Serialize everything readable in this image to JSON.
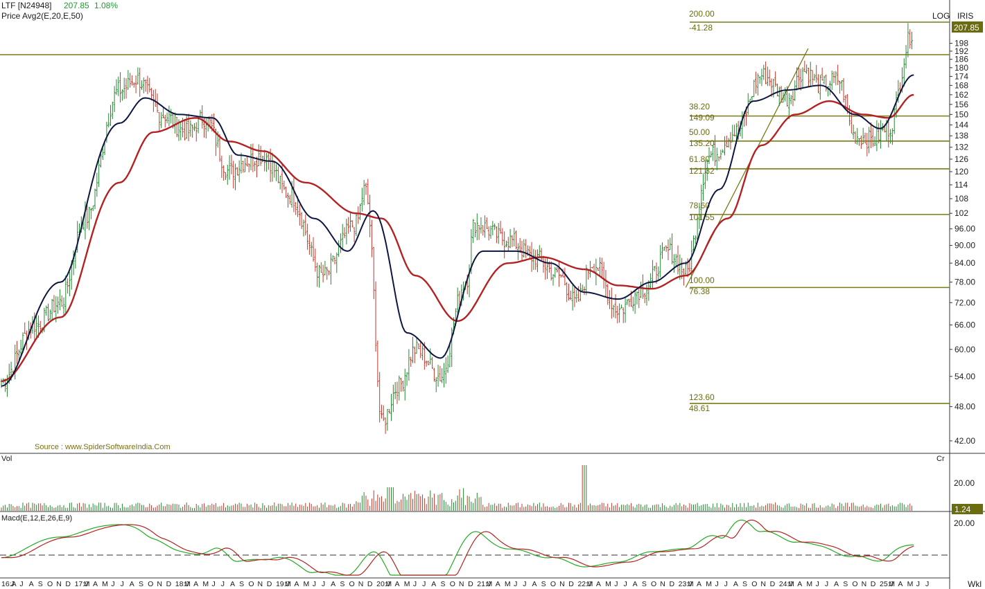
{
  "header": {
    "symbol": "LTF [N24948]",
    "last": "207.85",
    "change": "1.08%",
    "indicator": "Price  Avg2(E,20,E,50)",
    "scale": "LOG",
    "brand": "IRIS",
    "last_tag": "207.85"
  },
  "colors": {
    "up": "#1f8a2f",
    "down": "#c0392b",
    "ema20": "#0d1640",
    "ema50": "#b32222",
    "fib": "#7a7a14",
    "macd": "#22aa22",
    "signal": "#b32222",
    "axis_text": "#222222"
  },
  "source": "Source : www.SpiderSoftwareIndia.Com",
  "volume": {
    "label": "Vol",
    "unit": "Cr",
    "tick": "20.00",
    "last_tag": "1.24"
  },
  "macd": {
    "label": "Macd(E,12,E,26,E,9)",
    "tick": "20.00"
  },
  "corner": "Wkl",
  "y_ticks": [
    "198",
    "192",
    "186",
    "180",
    "174",
    "168",
    "162",
    "156",
    "150",
    "144",
    "138",
    "132",
    "126",
    "120",
    "114",
    "108",
    "102",
    "96.00",
    "90.00",
    "84.00",
    "78.00",
    "72.00",
    "66.00",
    "60.00",
    "54.00",
    "48.00",
    "42.00"
  ],
  "x_labels": [
    "16:A",
    "J",
    "J",
    "A",
    "S",
    "O",
    "N",
    "D",
    "17:J",
    "M",
    "A",
    "M",
    "J",
    "J",
    "A",
    "S",
    "O",
    "N",
    "D",
    "18:J",
    "M",
    "A",
    "M",
    "J",
    "J",
    "A",
    "S",
    "O",
    "N",
    "D",
    "19:J",
    "M",
    "A",
    "M",
    "J",
    "J",
    "A",
    "S",
    "O",
    "N",
    "D",
    "20:J",
    "M",
    "A",
    "M",
    "J",
    "J",
    "A",
    "S",
    "O",
    "N",
    "D",
    "21:J",
    "M",
    "A",
    "M",
    "J",
    "J",
    "A",
    "S",
    "O",
    "N",
    "D",
    "22:J",
    "M",
    "A",
    "M",
    "J",
    "J",
    "A",
    "S",
    "O",
    "N",
    "D",
    "23:J",
    "M",
    "A",
    "M",
    "J",
    "J",
    "A",
    "S",
    "O",
    "N",
    "D",
    "24:J",
    "M",
    "A",
    "M",
    "J",
    "J",
    "A",
    "S",
    "O",
    "N",
    "D",
    "25:J",
    "M",
    "A",
    "M",
    "J",
    "J"
  ],
  "fib_levels": [
    {
      "pct": "200.00",
      "price": "-41.28",
      "value": 207.0
    },
    {
      "pct": "38.20",
      "price": "149.09",
      "value": 149.09
    },
    {
      "pct": "50.00",
      "price": "135.20",
      "value": 135.2
    },
    {
      "pct": "61.80",
      "price": "121.32",
      "value": 121.32
    },
    {
      "pct": "78.60",
      "price": "101.55",
      "value": 101.55
    },
    {
      "pct": "100.00",
      "price": "76.38",
      "value": 76.38
    },
    {
      "pct": "123.60",
      "price": "48.61",
      "value": 48.61
    }
  ],
  "chart_data": {
    "type": "ohlc",
    "scale": "log",
    "period": "weekly",
    "ylim": [
      40,
      215
    ],
    "x_range": [
      "2016-06",
      "2025-06"
    ],
    "close_anchors": [
      [
        "2016-06",
        53
      ],
      [
        "2016-10",
        66
      ],
      [
        "2017-01",
        72
      ],
      [
        "2017-04",
        100
      ],
      [
        "2017-08",
        165
      ],
      [
        "2017-10",
        172
      ],
      [
        "2018-01",
        150
      ],
      [
        "2018-04",
        140
      ],
      [
        "2018-06",
        148
      ],
      [
        "2018-09",
        120
      ],
      [
        "2018-11",
        125
      ],
      [
        "2019-01",
        128
      ],
      [
        "2019-04",
        110
      ],
      [
        "2019-08",
        80
      ],
      [
        "2019-12",
        98
      ],
      [
        "2020-01",
        112
      ],
      [
        "2020-03",
        45
      ],
      [
        "2020-05",
        52
      ],
      [
        "2020-07",
        60
      ],
      [
        "2020-10",
        54
      ],
      [
        "2021-01",
        78
      ],
      [
        "2021-02",
        98
      ],
      [
        "2021-06",
        92
      ],
      [
        "2021-09",
        86
      ],
      [
        "2021-12",
        80
      ],
      [
        "2022-02",
        72
      ],
      [
        "2022-04",
        84
      ],
      [
        "2022-07",
        70
      ],
      [
        "2022-10",
        76
      ],
      [
        "2023-01",
        88
      ],
      [
        "2023-03",
        81
      ],
      [
        "2023-06",
        128
      ],
      [
        "2023-09",
        140
      ],
      [
        "2023-12",
        175
      ],
      [
        "2024-03",
        160
      ],
      [
        "2024-05",
        178
      ],
      [
        "2024-07",
        168
      ],
      [
        "2024-09",
        172
      ],
      [
        "2024-11",
        138
      ],
      [
        "2025-01",
        136
      ],
      [
        "2025-03",
        142
      ],
      [
        "2025-06",
        207.85
      ]
    ],
    "ema20_anchors": [
      [
        "2016-06",
        52
      ],
      [
        "2017-01",
        78
      ],
      [
        "2017-08",
        145
      ],
      [
        "2017-11",
        160
      ],
      [
        "2018-03",
        150
      ],
      [
        "2018-07",
        148
      ],
      [
        "2018-10",
        128
      ],
      [
        "2019-02",
        125
      ],
      [
        "2019-07",
        100
      ],
      [
        "2019-11",
        88
      ],
      [
        "2020-02",
        103
      ],
      [
        "2020-06",
        64
      ],
      [
        "2020-10",
        58
      ],
      [
        "2021-03",
        88
      ],
      [
        "2021-07",
        88
      ],
      [
        "2021-11",
        84
      ],
      [
        "2022-03",
        75
      ],
      [
        "2022-07",
        73
      ],
      [
        "2022-11",
        78
      ],
      [
        "2023-03",
        84
      ],
      [
        "2023-07",
        112
      ],
      [
        "2023-11",
        158
      ],
      [
        "2024-03",
        165
      ],
      [
        "2024-07",
        168
      ],
      [
        "2024-11",
        150
      ],
      [
        "2025-02",
        142
      ],
      [
        "2025-06",
        175
      ]
    ],
    "ema50_anchors": [
      [
        "2016-06",
        53
      ],
      [
        "2017-01",
        68
      ],
      [
        "2017-08",
        115
      ],
      [
        "2017-12",
        140
      ],
      [
        "2018-05",
        148
      ],
      [
        "2018-09",
        135
      ],
      [
        "2019-01",
        130
      ],
      [
        "2019-06",
        115
      ],
      [
        "2019-12",
        102
      ],
      [
        "2020-03",
        100
      ],
      [
        "2020-07",
        80
      ],
      [
        "2020-12",
        67
      ],
      [
        "2021-06",
        84
      ],
      [
        "2021-10",
        86
      ],
      [
        "2022-03",
        82
      ],
      [
        "2022-07",
        77
      ],
      [
        "2022-11",
        76
      ],
      [
        "2023-03",
        80
      ],
      [
        "2023-08",
        100
      ],
      [
        "2023-12",
        133
      ],
      [
        "2024-04",
        150
      ],
      [
        "2024-08",
        158
      ],
      [
        "2024-12",
        150
      ],
      [
        "2025-03",
        148
      ],
      [
        "2025-06",
        162
      ]
    ],
    "fib_trend": [
      [
        "2023-03",
        76.38
      ],
      [
        "2024-05",
        194
      ]
    ]
  }
}
